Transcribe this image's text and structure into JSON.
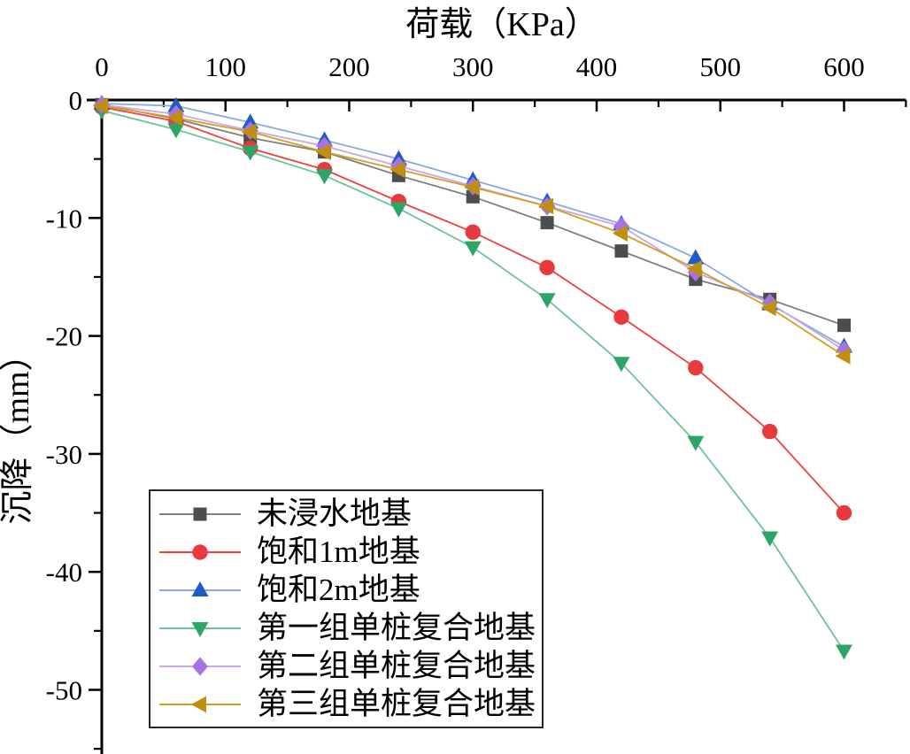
{
  "chart_data": {
    "type": "line",
    "title": "",
    "xlabel": "荷载（KPa）",
    "ylabel": "沉降（mm）",
    "xlim": [
      0,
      650
    ],
    "ylim": [
      -55.5,
      0
    ],
    "grid": false,
    "legend_position": "inside-lower-left",
    "x_ticks": [
      0,
      100,
      200,
      300,
      400,
      500,
      600
    ],
    "x_minor_ticks": [
      50,
      150,
      250,
      350,
      450,
      550,
      650
    ],
    "y_ticks": [
      0,
      -10,
      -20,
      -30,
      -40,
      -50
    ],
    "y_minor_ticks": [
      -5,
      -15,
      -25,
      -35,
      -45,
      -55
    ],
    "x": [
      0,
      60,
      120,
      180,
      240,
      300,
      360,
      420,
      480,
      540,
      600
    ],
    "series": [
      {
        "name": "未浸水地基",
        "marker": "square",
        "line_color": "#7f7f7f",
        "marker_color": "#4d4d4d",
        "values": [
          -0.4,
          -1.6,
          -3.2,
          -4.4,
          -6.4,
          -8.2,
          -10.4,
          -12.8,
          -15.2,
          -16.9,
          -19.1
        ]
      },
      {
        "name": "饱和1m地基",
        "marker": "circle",
        "line_color": "#ee4140",
        "marker_color": "#e83a3c",
        "values": [
          -0.6,
          -1.8,
          -4.1,
          -5.9,
          -8.6,
          -11.2,
          -14.2,
          -18.4,
          -22.7,
          -28.1,
          -35.0
        ]
      },
      {
        "name": "饱和2m地基",
        "marker": "triangle-up",
        "line_color": "#8aa9e0",
        "marker_color": "#2059c8",
        "values": [
          -0.3,
          -0.5,
          -1.9,
          -3.4,
          -5.0,
          -6.8,
          -8.6,
          -10.5,
          -13.4,
          -17.3,
          -20.9
        ]
      },
      {
        "name": "第一组单桩复合地基",
        "marker": "triangle-down",
        "line_color": "#6dc398",
        "marker_color": "#2da566",
        "values": [
          -0.9,
          -2.5,
          -4.4,
          -6.4,
          -9.2,
          -12.5,
          -16.9,
          -22.3,
          -29.0,
          -37.1,
          -46.7
        ]
      },
      {
        "name": "第二组单桩复合地基",
        "marker": "diamond",
        "line_color": "#c7a6e9",
        "marker_color": "#a873de",
        "values": [
          -0.4,
          -1.2,
          -2.6,
          -3.9,
          -5.6,
          -7.3,
          -9.0,
          -10.7,
          -14.6,
          -17.2,
          -21.2
        ]
      },
      {
        "name": "第三组单桩复合地基",
        "marker": "triangle-left",
        "line_color": "#d2a01f",
        "marker_color": "#c18f10",
        "values": [
          -0.5,
          -1.5,
          -2.7,
          -4.4,
          -5.9,
          -7.4,
          -9.0,
          -11.3,
          -14.3,
          -17.6,
          -21.7
        ]
      }
    ]
  }
}
